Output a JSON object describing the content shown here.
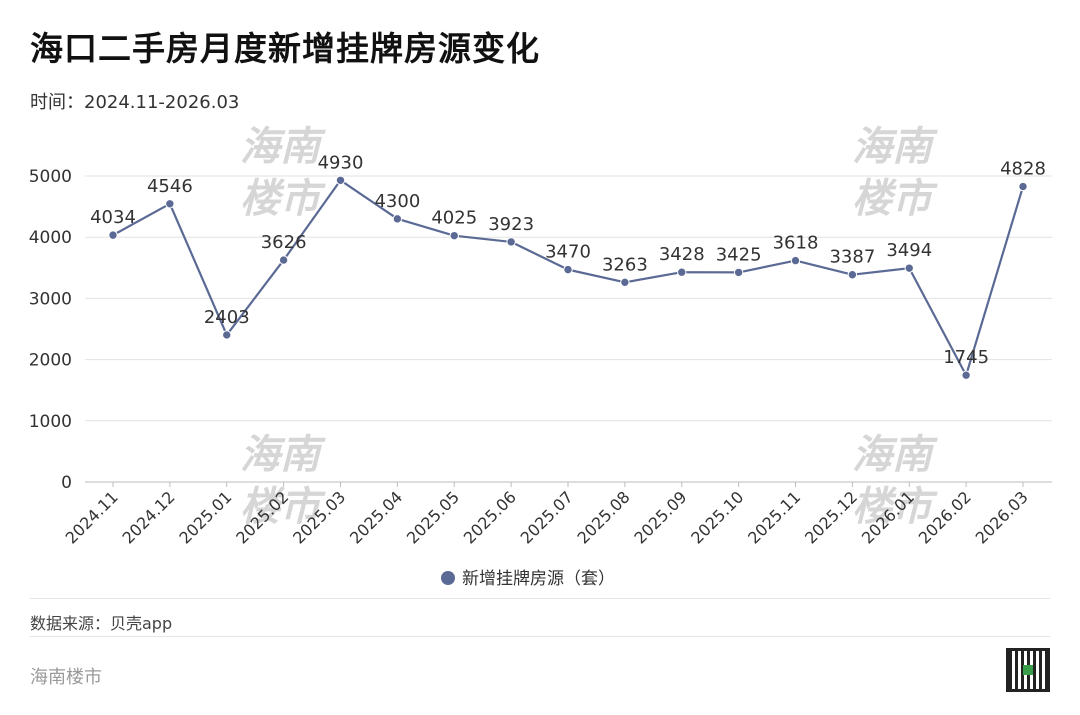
{
  "header": {
    "title": "海口二手房月度新增挂牌房源变化",
    "subtitle": "时间：2024.11-2026.03"
  },
  "footer": {
    "source": "数据来源：贝壳app",
    "brand": "海南楼市"
  },
  "watermark": {
    "line1": "海南",
    "line2": "楼市"
  },
  "colors": {
    "series": "#5b6a95",
    "grid": "#e2e2e2",
    "axis_text": "#333333",
    "watermark": "#d6d6d6"
  },
  "chart_data": {
    "type": "line",
    "x": [
      "2024.11",
      "2024.12",
      "2025.01",
      "2025.02",
      "2025.03",
      "2025.04",
      "2025.05",
      "2025.06",
      "2025.07",
      "2025.08",
      "2025.09",
      "2025.10",
      "2025.11",
      "2025.12",
      "2026.01",
      "2026.02",
      "2026.03"
    ],
    "series": [
      {
        "name": "新增挂牌房源（套）",
        "values": [
          4034,
          4546,
          2403,
          3626,
          4930,
          4300,
          4025,
          3923,
          3470,
          3263,
          3428,
          3425,
          3618,
          3387,
          3494,
          1745,
          4828
        ]
      }
    ],
    "ylim": [
      0,
      5000
    ],
    "yticks": [
      0,
      1000,
      2000,
      3000,
      4000,
      5000
    ],
    "grid": true,
    "legend": "bottom-center"
  }
}
